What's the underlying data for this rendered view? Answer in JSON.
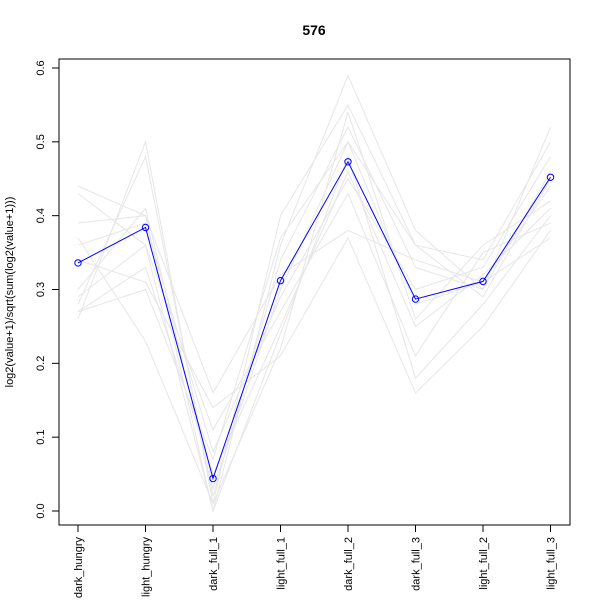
{
  "chart_data": {
    "type": "line",
    "title": "576",
    "xlabel": "",
    "ylabel": "log2(value+1)/sqrt(sum(log2(value+1)))",
    "categories": [
      "dark_hungry",
      "light_hungry",
      "dark_full_1",
      "light_full_1",
      "dark_full_2",
      "dark_full_3",
      "light_full_2",
      "light_full_3"
    ],
    "ylim": [
      0.0,
      0.6
    ],
    "yticks": [
      "0.0",
      "0.1",
      "0.2",
      "0.3",
      "0.4",
      "0.5",
      "0.6"
    ],
    "highlight_color": "#0000ff",
    "background_color": "#e6e6e6",
    "highlight": {
      "values": [
        0.336,
        0.384,
        0.044,
        0.312,
        0.473,
        0.287,
        0.311,
        0.452
      ]
    },
    "background_series": [
      {
        "values": [
          0.44,
          0.4,
          0.0,
          0.36,
          0.59,
          0.38,
          0.3,
          0.52
        ]
      },
      {
        "values": [
          0.26,
          0.5,
          0.01,
          0.4,
          0.55,
          0.36,
          0.34,
          0.5
        ]
      },
      {
        "values": [
          0.28,
          0.48,
          0.02,
          0.34,
          0.52,
          0.33,
          0.3,
          0.46
        ]
      },
      {
        "values": [
          0.3,
          0.41,
          0.03,
          0.3,
          0.5,
          0.28,
          0.31,
          0.44
        ]
      },
      {
        "values": [
          0.27,
          0.33,
          0.05,
          0.25,
          0.46,
          0.25,
          0.32,
          0.41
        ]
      },
      {
        "values": [
          0.36,
          0.39,
          0.08,
          0.29,
          0.45,
          0.3,
          0.33,
          0.48
        ]
      },
      {
        "values": [
          0.43,
          0.36,
          0.11,
          0.27,
          0.43,
          0.21,
          0.35,
          0.39
        ]
      },
      {
        "values": [
          0.39,
          0.4,
          0.16,
          0.32,
          0.38,
          0.34,
          0.31,
          0.37
        ]
      },
      {
        "values": [
          0.34,
          0.31,
          0.14,
          0.21,
          0.37,
          0.16,
          0.25,
          0.38
        ]
      },
      {
        "values": [
          0.29,
          0.36,
          0.0,
          0.24,
          0.48,
          0.18,
          0.28,
          0.4
        ]
      },
      {
        "values": [
          0.37,
          0.23,
          0.01,
          0.22,
          0.54,
          0.26,
          0.36,
          0.42
        ]
      },
      {
        "values": [
          0.27,
          0.3,
          0.07,
          0.37,
          0.5,
          0.36,
          0.29,
          0.45
        ]
      }
    ]
  }
}
